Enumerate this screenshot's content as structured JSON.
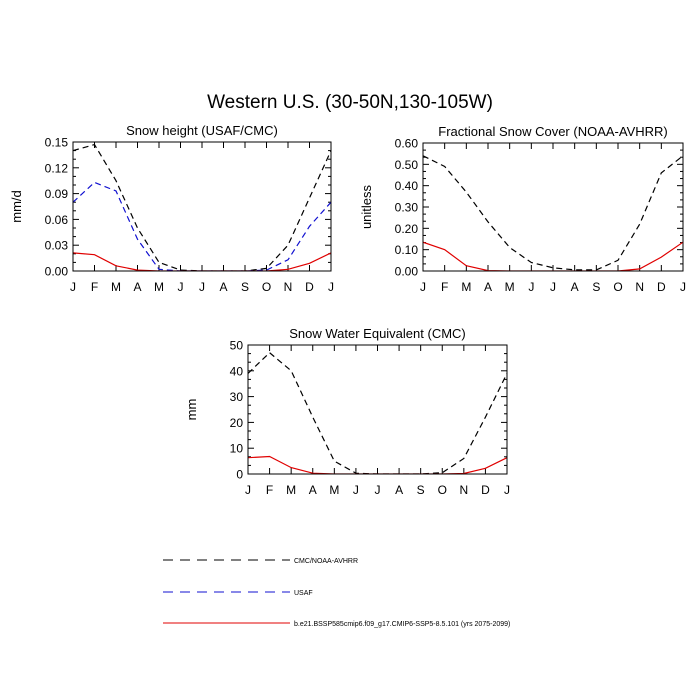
{
  "title": "Western U.S. (30-50N,130-105W)",
  "colors": {
    "obs": "#000000",
    "usaf": "#1010d0",
    "model": "#e00000"
  },
  "months": [
    "J",
    "F",
    "M",
    "A",
    "M",
    "J",
    "J",
    "A",
    "S",
    "O",
    "N",
    "D",
    "J"
  ],
  "legend": {
    "obs": "CMC/NOAA-AVHRR",
    "usaf": "USAF",
    "model": "b.e21.BSSP585cmip6.f09_g17.CMIP6-SSP5-8.5.101 (yrs 2075-2099)"
  },
  "chart_data": [
    {
      "type": "line",
      "title": "Snow height (USAF/CMC)",
      "ylabel": "mm/d",
      "ylim": [
        0,
        0.15
      ],
      "yticks": [
        "0.00",
        "0.03",
        "0.06",
        "0.09",
        "0.12",
        "0.15"
      ],
      "x": [
        "J",
        "F",
        "M",
        "A",
        "M",
        "J",
        "J",
        "A",
        "S",
        "O",
        "N",
        "D",
        "J"
      ],
      "series": [
        {
          "name": "CMC/NOAA-AVHRR",
          "style": "dashed",
          "color": "#000000",
          "values": [
            0.14,
            0.147,
            0.105,
            0.05,
            0.01,
            0.001,
            0.0,
            0.0,
            0.0,
            0.003,
            0.03,
            0.085,
            0.14
          ]
        },
        {
          "name": "USAF",
          "style": "dashed",
          "color": "#1010d0",
          "values": [
            0.08,
            0.103,
            0.093,
            0.037,
            0.002,
            0.0,
            0.0,
            0.0,
            0.0,
            0.001,
            0.013,
            0.052,
            0.08
          ]
        },
        {
          "name": "b.e21.BSSP585cmip6.f09_g17.CMIP6-SSP5-8.5.101 (yrs 2075-2099)",
          "style": "solid",
          "color": "#e00000",
          "values": [
            0.021,
            0.019,
            0.006,
            0.001,
            0.0,
            0.0,
            0.0,
            0.0,
            0.0,
            0.0,
            0.002,
            0.009,
            0.021
          ]
        }
      ]
    },
    {
      "type": "line",
      "title": "Fractional Snow Cover (NOAA-AVHRR)",
      "ylabel": "unitless",
      "ylim": [
        0,
        0.6
      ],
      "yticks": [
        "0.00",
        "0.10",
        "0.20",
        "0.30",
        "0.40",
        "0.50",
        "0.60"
      ],
      "x": [
        "J",
        "F",
        "M",
        "A",
        "M",
        "J",
        "J",
        "A",
        "S",
        "O",
        "N",
        "D",
        "J"
      ],
      "series": [
        {
          "name": "CMC/NOAA-AVHRR",
          "style": "dashed",
          "color": "#000000",
          "values": [
            0.54,
            0.49,
            0.37,
            0.23,
            0.11,
            0.04,
            0.015,
            0.005,
            0.005,
            0.05,
            0.22,
            0.46,
            0.54
          ]
        },
        {
          "name": "b.e21.BSSP585cmip6.f09_g17.CMIP6-SSP5-8.5.101 (yrs 2075-2099)",
          "style": "solid",
          "color": "#e00000",
          "values": [
            0.135,
            0.1,
            0.025,
            0.002,
            0.0,
            0.0,
            0.0,
            0.0,
            0.0,
            0.0,
            0.01,
            0.065,
            0.135
          ]
        }
      ]
    },
    {
      "type": "line",
      "title": "Snow Water Equivalent (CMC)",
      "ylabel": "mm",
      "ylim": [
        0,
        50
      ],
      "yticks": [
        "0",
        "10",
        "20",
        "30",
        "40",
        "50"
      ],
      "x": [
        "J",
        "F",
        "M",
        "A",
        "M",
        "J",
        "J",
        "A",
        "S",
        "O",
        "N",
        "D",
        "J"
      ],
      "series": [
        {
          "name": "CMC/NOAA-AVHRR",
          "style": "dashed",
          "color": "#000000",
          "values": [
            39,
            47,
            40,
            22,
            5,
            0.3,
            0,
            0,
            0,
            0.5,
            6,
            22,
            39
          ]
        },
        {
          "name": "b.e21.BSSP585cmip6.f09_g17.CMIP6-SSP5-8.5.101 (yrs 2075-2099)",
          "style": "solid",
          "color": "#e00000",
          "values": [
            6.3,
            6.8,
            2.5,
            0.3,
            0,
            0,
            0,
            0,
            0,
            0,
            0.2,
            2.2,
            6.3
          ]
        }
      ]
    }
  ]
}
